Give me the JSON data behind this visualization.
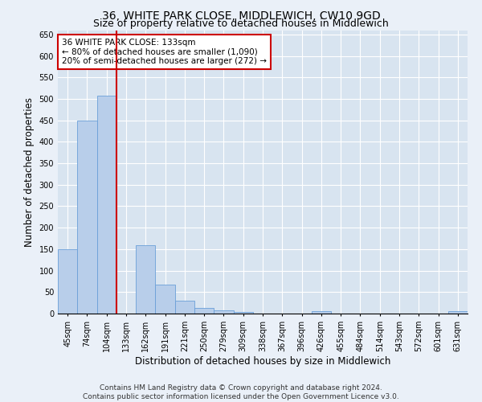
{
  "title": "36, WHITE PARK CLOSE, MIDDLEWICH, CW10 9GD",
  "subtitle": "Size of property relative to detached houses in Middlewich",
  "xlabel": "Distribution of detached houses by size in Middlewich",
  "ylabel": "Number of detached properties",
  "categories": [
    "45sqm",
    "74sqm",
    "104sqm",
    "133sqm",
    "162sqm",
    "191sqm",
    "221sqm",
    "250sqm",
    "279sqm",
    "309sqm",
    "338sqm",
    "367sqm",
    "396sqm",
    "426sqm",
    "455sqm",
    "484sqm",
    "514sqm",
    "543sqm",
    "572sqm",
    "601sqm",
    "631sqm"
  ],
  "values": [
    150,
    450,
    507,
    0,
    160,
    68,
    30,
    13,
    8,
    3,
    0,
    0,
    0,
    6,
    0,
    0,
    0,
    0,
    0,
    0,
    6
  ],
  "bar_color": "#b8ceea",
  "bar_edge_color": "#6a9fd8",
  "vline_x_index": 3,
  "vline_color": "#cc0000",
  "annotation_line1": "36 WHITE PARK CLOSE: 133sqm",
  "annotation_line2": "← 80% of detached houses are smaller (1,090)",
  "annotation_line3": "20% of semi-detached houses are larger (272) →",
  "annotation_box_color": "#ffffff",
  "annotation_box_edge_color": "#cc0000",
  "ylim": [
    0,
    660
  ],
  "yticks": [
    0,
    50,
    100,
    150,
    200,
    250,
    300,
    350,
    400,
    450,
    500,
    550,
    600,
    650
  ],
  "footer_text": "Contains HM Land Registry data © Crown copyright and database right 2024.\nContains public sector information licensed under the Open Government Licence v3.0.",
  "bg_color": "#eaf0f8",
  "plot_bg_color": "#d8e4f0",
  "grid_color": "#ffffff",
  "title_fontsize": 10,
  "subtitle_fontsize": 9,
  "tick_fontsize": 7,
  "ylabel_fontsize": 8.5,
  "xlabel_fontsize": 8.5,
  "annotation_fontsize": 7.5,
  "footer_fontsize": 6.5
}
